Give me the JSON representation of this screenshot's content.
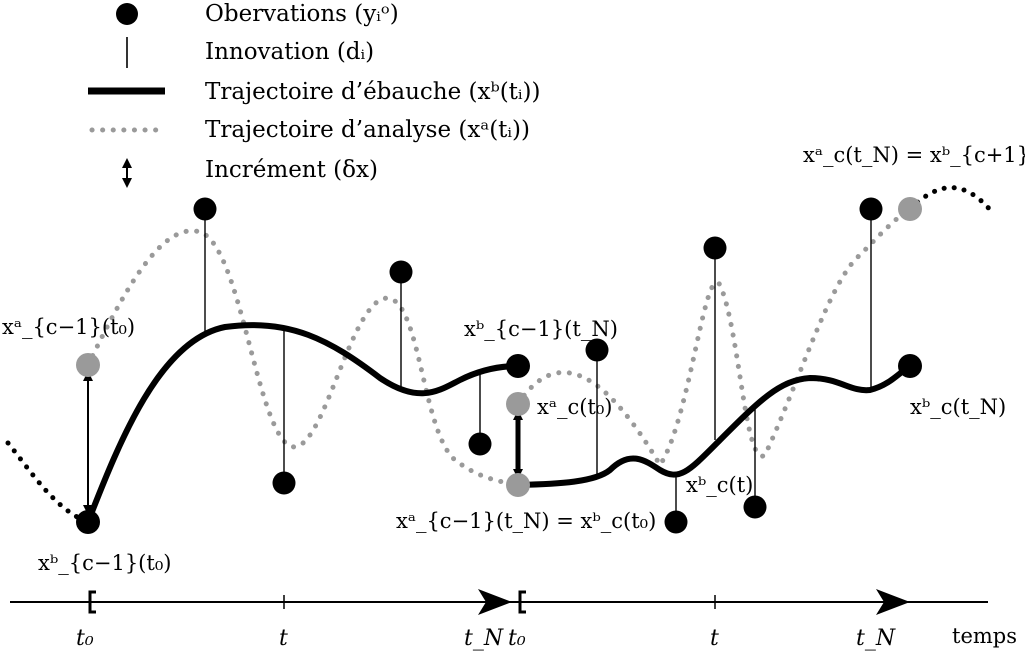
{
  "legend": {
    "observations": "Obervations (yᵢᵒ)",
    "innovation": "Innovation (dᵢ)",
    "background": "Trajectoire d’ébauche (xᵇ(tᵢ))",
    "analysis": "Trajectoire d’analyse (xᵃ(tᵢ))",
    "increment": "Incrément (δx)"
  },
  "labels": {
    "xa_prev_t0": "xᵃ_{c−1}(t₀)",
    "xb_prev_tN": "xᵇ_{c−1}(t_N)",
    "xa_c_t0": "xᵃ_c(t₀)",
    "junction": "xᵃ_{c−1}(t_N) = xᵇ_c(t₀)",
    "xb_prev_t0": "xᵇ_{c−1}(t₀)",
    "xb_c_t": "xᵇ_c(t)",
    "xb_c_tN": "xᵇ_c(t_N)",
    "top_right": "xᵃ_c(t_N) = xᵇ_{c+1}(t₀)"
  },
  "axis": {
    "ticks": [
      "t₀",
      "t",
      "t_N",
      "t₀",
      "t",
      "t_N"
    ],
    "name": "temps"
  },
  "colors": {
    "background_line": "#000000",
    "analysis_line": "#9a9a9a",
    "observation": "#000000",
    "analysis_point": "#9a9a9a"
  }
}
